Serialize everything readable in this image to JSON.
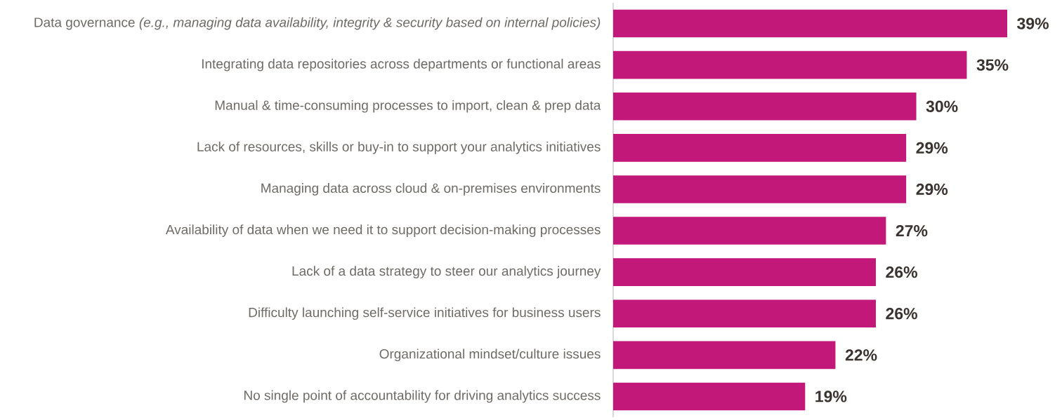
{
  "chart_data": {
    "type": "bar",
    "orientation": "horizontal",
    "categories": [
      "Data governance *(e.g., managing data availability, integrity & security based on internal policies)*",
      "Integrating data repositories across departments or functional areas",
      "Manual & time-consuming processes to import, clean & prep data",
      "Lack of resources, skills or buy-in to support your analytics initiatives",
      "Managing data across cloud & on-premises environments",
      "Availability of data when we need it to support decision-making processes",
      "Lack of a data strategy to steer our analytics journey",
      "Difficulty launching self-service initiatives for business users",
      "Organizational mindset/culture issues",
      "No single point of accountability for driving analytics success"
    ],
    "values": [
      39,
      35,
      30,
      29,
      29,
      27,
      26,
      26,
      22,
      19
    ],
    "value_labels": [
      "39%",
      "35%",
      "30%",
      "29%",
      "29%",
      "27%",
      "26%",
      "26%",
      "22%",
      "19%"
    ],
    "color": "#c2187a",
    "xlim": [
      0,
      39
    ],
    "tick_labels": "y"
  }
}
